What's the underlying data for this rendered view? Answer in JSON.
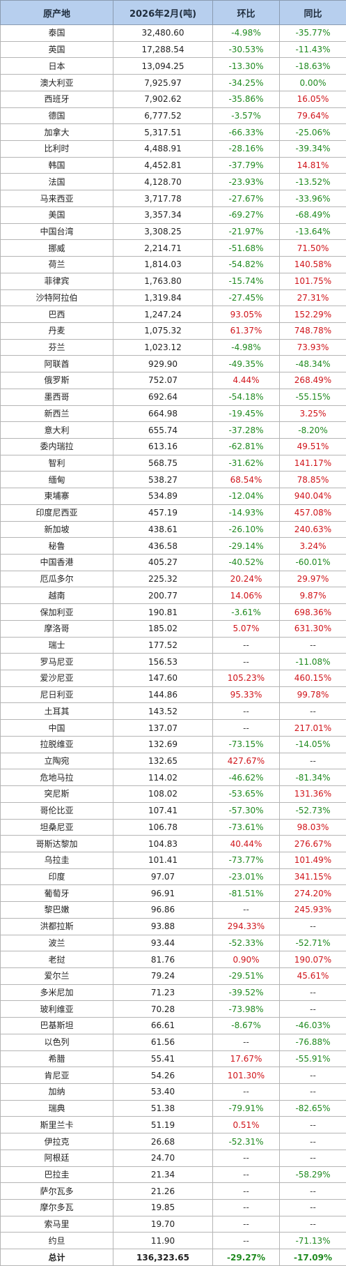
{
  "headers": [
    "原产地",
    "2026年2月(吨)",
    "环比",
    "同比"
  ],
  "colors": {
    "header_bg": "#b7cfee",
    "increase": "#d0141a",
    "decrease": "#1f8a1f"
  },
  "rows": [
    [
      "泰国",
      "32,480.60",
      "-4.98%",
      "-35.77%"
    ],
    [
      "英国",
      "17,288.54",
      "-30.53%",
      "-11.43%"
    ],
    [
      "日本",
      "13,094.25",
      "-13.30%",
      "-18.63%"
    ],
    [
      "澳大利亚",
      "7,925.97",
      "-34.25%",
      "0.00%"
    ],
    [
      "西班牙",
      "7,902.62",
      "-35.86%",
      "16.05%"
    ],
    [
      "德国",
      "6,777.52",
      "-3.57%",
      "79.64%"
    ],
    [
      "加拿大",
      "5,317.51",
      "-66.33%",
      "-25.06%"
    ],
    [
      "比利时",
      "4,488.91",
      "-28.16%",
      "-39.34%"
    ],
    [
      "韩国",
      "4,452.81",
      "-37.79%",
      "14.81%"
    ],
    [
      "法国",
      "4,128.70",
      "-23.93%",
      "-13.52%"
    ],
    [
      "马来西亚",
      "3,717.78",
      "-27.67%",
      "-33.96%"
    ],
    [
      "美国",
      "3,357.34",
      "-69.27%",
      "-68.49%"
    ],
    [
      "中国台湾",
      "3,308.25",
      "-21.97%",
      "-13.64%"
    ],
    [
      "挪威",
      "2,214.71",
      "-51.68%",
      "71.50%"
    ],
    [
      "荷兰",
      "1,814.03",
      "-54.82%",
      "140.58%"
    ],
    [
      "菲律宾",
      "1,763.80",
      "-15.74%",
      "101.75%"
    ],
    [
      "沙特阿拉伯",
      "1,319.84",
      "-27.45%",
      "27.31%"
    ],
    [
      "巴西",
      "1,247.24",
      "93.05%",
      "152.29%"
    ],
    [
      "丹麦",
      "1,075.32",
      "61.37%",
      "748.78%"
    ],
    [
      "芬兰",
      "1,023.12",
      "-4.98%",
      "73.93%"
    ],
    [
      "阿联酋",
      "929.90",
      "-49.35%",
      "-48.34%"
    ],
    [
      "俄罗斯",
      "752.07",
      "4.44%",
      "268.49%"
    ],
    [
      "墨西哥",
      "692.64",
      "-54.18%",
      "-55.15%"
    ],
    [
      "新西兰",
      "664.98",
      "-19.45%",
      "3.25%"
    ],
    [
      "意大利",
      "655.74",
      "-37.28%",
      "-8.20%"
    ],
    [
      "委内瑞拉",
      "613.16",
      "-62.81%",
      "49.51%"
    ],
    [
      "智利",
      "568.75",
      "-31.62%",
      "141.17%"
    ],
    [
      "缅甸",
      "538.27",
      "68.54%",
      "78.85%"
    ],
    [
      "柬埔寨",
      "534.89",
      "-12.04%",
      "940.04%"
    ],
    [
      "印度尼西亚",
      "457.19",
      "-14.93%",
      "457.08%"
    ],
    [
      "新加坡",
      "438.61",
      "-26.10%",
      "240.63%"
    ],
    [
      "秘鲁",
      "436.58",
      "-29.14%",
      "3.24%"
    ],
    [
      "中国香港",
      "405.27",
      "-40.52%",
      "-60.01%"
    ],
    [
      "厄瓜多尔",
      "225.32",
      "20.24%",
      "29.97%"
    ],
    [
      "越南",
      "200.77",
      "14.06%",
      "9.87%"
    ],
    [
      "保加利亚",
      "190.81",
      "-3.61%",
      "698.36%"
    ],
    [
      "摩洛哥",
      "185.02",
      "5.07%",
      "631.30%"
    ],
    [
      "瑞士",
      "177.52",
      "--",
      "--"
    ],
    [
      "罗马尼亚",
      "156.53",
      "--",
      "-11.08%"
    ],
    [
      "爱沙尼亚",
      "147.60",
      "105.23%",
      "460.15%"
    ],
    [
      "尼日利亚",
      "144.86",
      "95.33%",
      "99.78%"
    ],
    [
      "土耳其",
      "143.52",
      "--",
      "--"
    ],
    [
      "中国",
      "137.07",
      "--",
      "217.01%"
    ],
    [
      "拉脱维亚",
      "132.69",
      "-73.15%",
      "-14.05%"
    ],
    [
      "立陶宛",
      "132.65",
      "427.67%",
      "--"
    ],
    [
      "危地马拉",
      "114.02",
      "-46.62%",
      "-81.34%"
    ],
    [
      "突尼斯",
      "108.02",
      "-53.65%",
      "131.36%"
    ],
    [
      "哥伦比亚",
      "107.41",
      "-57.30%",
      "-52.73%"
    ],
    [
      "坦桑尼亚",
      "106.78",
      "-73.61%",
      "98.03%"
    ],
    [
      "哥斯达黎加",
      "104.83",
      "40.44%",
      "276.67%"
    ],
    [
      "乌拉圭",
      "101.41",
      "-73.77%",
      "101.49%"
    ],
    [
      "印度",
      "97.07",
      "-23.01%",
      "341.15%"
    ],
    [
      "葡萄牙",
      "96.91",
      "-81.51%",
      "274.20%"
    ],
    [
      "黎巴嫩",
      "96.86",
      "--",
      "245.93%"
    ],
    [
      "洪都拉斯",
      "93.88",
      "294.33%",
      "--"
    ],
    [
      "波兰",
      "93.44",
      "-52.33%",
      "-52.71%"
    ],
    [
      "老挝",
      "81.76",
      "0.90%",
      "190.07%"
    ],
    [
      "爱尔兰",
      "79.24",
      "-29.51%",
      "45.61%"
    ],
    [
      "多米尼加",
      "71.23",
      "-39.52%",
      "--"
    ],
    [
      "玻利维亚",
      "70.28",
      "-73.98%",
      "--"
    ],
    [
      "巴基斯坦",
      "66.61",
      "-8.67%",
      "-46.03%"
    ],
    [
      "以色列",
      "61.56",
      "--",
      "-76.88%"
    ],
    [
      "希腊",
      "55.41",
      "17.67%",
      "-55.91%"
    ],
    [
      "肯尼亚",
      "54.26",
      "101.30%",
      "--"
    ],
    [
      "加纳",
      "53.40",
      "--",
      "--"
    ],
    [
      "瑞典",
      "51.38",
      "-79.91%",
      "-82.65%"
    ],
    [
      "斯里兰卡",
      "51.19",
      "0.51%",
      "--"
    ],
    [
      "伊拉克",
      "26.68",
      "-52.31%",
      "--"
    ],
    [
      "阿根廷",
      "24.70",
      "--",
      "--"
    ],
    [
      "巴拉圭",
      "21.34",
      "--",
      "-58.29%"
    ],
    [
      "萨尔瓦多",
      "21.26",
      "--",
      "--"
    ],
    [
      "摩尔多瓦",
      "19.85",
      "--",
      "--"
    ],
    [
      "索马里",
      "19.70",
      "--",
      "--"
    ],
    [
      "约旦",
      "11.90",
      "--",
      "-71.13%"
    ]
  ],
  "total": [
    "总计",
    "136,323.65",
    "-29.27%",
    "-17.09%"
  ]
}
